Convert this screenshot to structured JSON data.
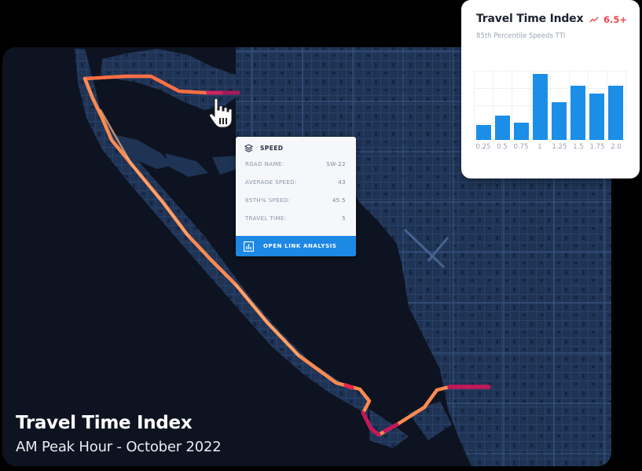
{
  "map": {
    "title": "Travel Time Index",
    "subtitle": "AM Peak Hour - October 2022",
    "colors": {
      "water": "#0d1320",
      "land": "#1f3354",
      "roads": "#3a5580",
      "route_low": "#ff7a45",
      "route_high": "#c2185b"
    }
  },
  "popup": {
    "header": "SPEED",
    "header_icon": "layers-icon",
    "rows": [
      {
        "label": "ROAD NAME:",
        "value": "SW-22"
      },
      {
        "label": "AVERAGE SPEED:",
        "value": "43"
      },
      {
        "label": "85TH% SPEED:",
        "value": "45.5"
      },
      {
        "label": "TRAVEL TIME:",
        "value": "5"
      }
    ],
    "button_label": "OPEN LINK ANALYSIS",
    "button_icon": "bar-chart-icon",
    "accent": "#1e88e5"
  },
  "tti_card": {
    "title": "Travel Time Index",
    "badge": "6.5+",
    "badge_icon": "trend-up-icon",
    "badge_color": "#f0454a",
    "subtitle": "85th Percentile Speeds TTI"
  },
  "chart_data": {
    "type": "bar",
    "title": "Travel Time Index",
    "subtitle": "85th Percentile Speeds TTI",
    "categories": [
      "0.25",
      "0.5",
      "0.75",
      "1",
      "1.25",
      "1.5",
      "1.75",
      "2.0"
    ],
    "values": [
      19,
      31,
      22,
      84,
      48,
      69,
      59,
      69
    ],
    "xlabel": "",
    "ylabel": "",
    "ylim": [
      0,
      88
    ],
    "grid": true,
    "legend": "none",
    "bar_color": "#1b8ee8"
  }
}
